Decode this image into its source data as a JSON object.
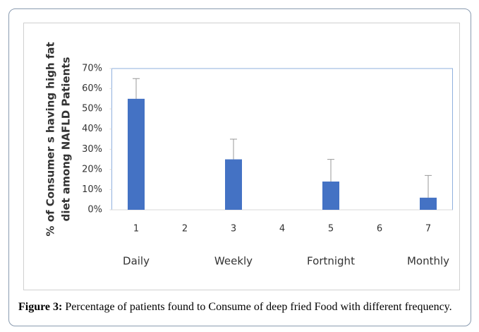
{
  "chart_data": {
    "type": "bar",
    "y_label_lines": [
      "% of Consumer s having high fat",
      "diet among NAFLD Patients"
    ],
    "categories": [
      "1",
      "2",
      "3",
      "4",
      "5",
      "6",
      "7"
    ],
    "values": [
      55,
      null,
      25,
      null,
      14,
      null,
      6
    ],
    "errors": [
      10,
      null,
      10,
      null,
      11,
      null,
      11
    ],
    "group_labels": [
      "Daily",
      "Weekly",
      "Fortnight",
      "Monthly"
    ],
    "color": "#4472c4",
    "ylim": [
      0,
      70
    ],
    "yticks": [
      {
        "value": 0,
        "label": "0%"
      },
      {
        "value": 10,
        "label": "10%"
      },
      {
        "value": 20,
        "label": "20%"
      },
      {
        "value": 30,
        "label": "30%"
      },
      {
        "value": 40,
        "label": "40%"
      },
      {
        "value": 50,
        "label": "50%"
      },
      {
        "value": 60,
        "label": "60%"
      },
      {
        "value": 70,
        "label": "70%"
      }
    ]
  },
  "caption": {
    "label": "Figure 3:",
    "text": "Percentage of patients found to Consume of deep fried Food with different frequency."
  }
}
